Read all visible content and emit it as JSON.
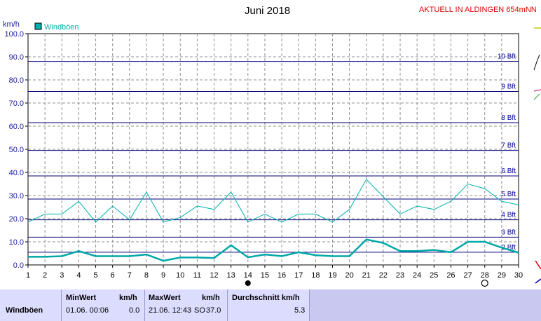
{
  "header": {
    "title": "Juni 2018",
    "station": "AKTUELL IN ALDINGEN 654mNN",
    "station_color": "#e00000"
  },
  "chart_data": {
    "type": "line",
    "title": "Juni 2018",
    "ylabel": "km/h",
    "ylim": [
      0,
      100
    ],
    "yticks": [
      "0.0",
      "10.0",
      "20.0",
      "30.0",
      "40.0",
      "50.0",
      "60.0",
      "70.0",
      "80.0",
      "90.0",
      "100.0"
    ],
    "xticks": [
      "1",
      "2",
      "3",
      "4",
      "5",
      "6",
      "7",
      "8",
      "9",
      "10",
      "11",
      "12",
      "13",
      "14",
      "15",
      "16",
      "17",
      "18",
      "19",
      "20",
      "21",
      "22",
      "23",
      "24",
      "25",
      "26",
      "27",
      "28",
      "29",
      "30"
    ],
    "x": [
      1,
      2,
      3,
      4,
      5,
      6,
      7,
      8,
      9,
      10,
      11,
      12,
      13,
      14,
      15,
      16,
      17,
      18,
      19,
      20,
      21,
      22,
      23,
      24,
      25,
      26,
      27,
      28,
      29,
      30
    ],
    "series": [
      {
        "name": "Windböen",
        "color": "#00b0b0",
        "values": [
          18.5,
          22,
          22,
          27.5,
          18.5,
          25.5,
          19.5,
          31.5,
          18.5,
          20.5,
          25.5,
          24,
          31.5,
          18.5,
          22,
          18.5,
          22,
          22,
          18.5,
          24,
          37,
          29.5,
          22,
          25.5,
          24,
          27.5,
          35,
          33,
          27.5,
          26
        ]
      },
      {
        "color": "#00a8a8",
        "values": [
          3.5,
          3.5,
          3.8,
          6,
          3.8,
          3.8,
          3.8,
          4.5,
          1.8,
          3.2,
          3.2,
          3,
          8.5,
          3.3,
          4.5,
          3.8,
          5.5,
          4.2,
          3.8,
          3.8,
          11,
          9.5,
          6,
          6,
          6.5,
          5.5,
          10,
          10,
          7.5,
          5.3
        ]
      }
    ],
    "beaufort": [
      {
        "label": "2 Bft",
        "value": 5.5
      },
      {
        "label": "3 Bft",
        "value": 12
      },
      {
        "label": "4 Bft",
        "value": 19.5
      },
      {
        "label": "5 Bft",
        "value": 28.5
      },
      {
        "label": "6 Bft",
        "value": 38.5
      },
      {
        "label": "7 Bft",
        "value": 49.5
      },
      {
        "label": "8 Bft",
        "value": 61.5
      },
      {
        "label": "9 Bft",
        "value": 75
      },
      {
        "label": "10 Bft",
        "value": 88
      }
    ],
    "grid": true,
    "legend": "top-left"
  },
  "stats": {
    "row_label": "Windböen",
    "min_header": "MinWert",
    "min_unit": "km/h",
    "min_time": "01.06.  00:06",
    "min_value": "0.0",
    "max_header": "MaxWert",
    "max_unit": "km/h",
    "max_time": "21.06.  12:43",
    "max_dir": "SO",
    "max_value": "37.0",
    "avg_header": "Durchschnitt km/h",
    "avg_value": "5.3"
  }
}
